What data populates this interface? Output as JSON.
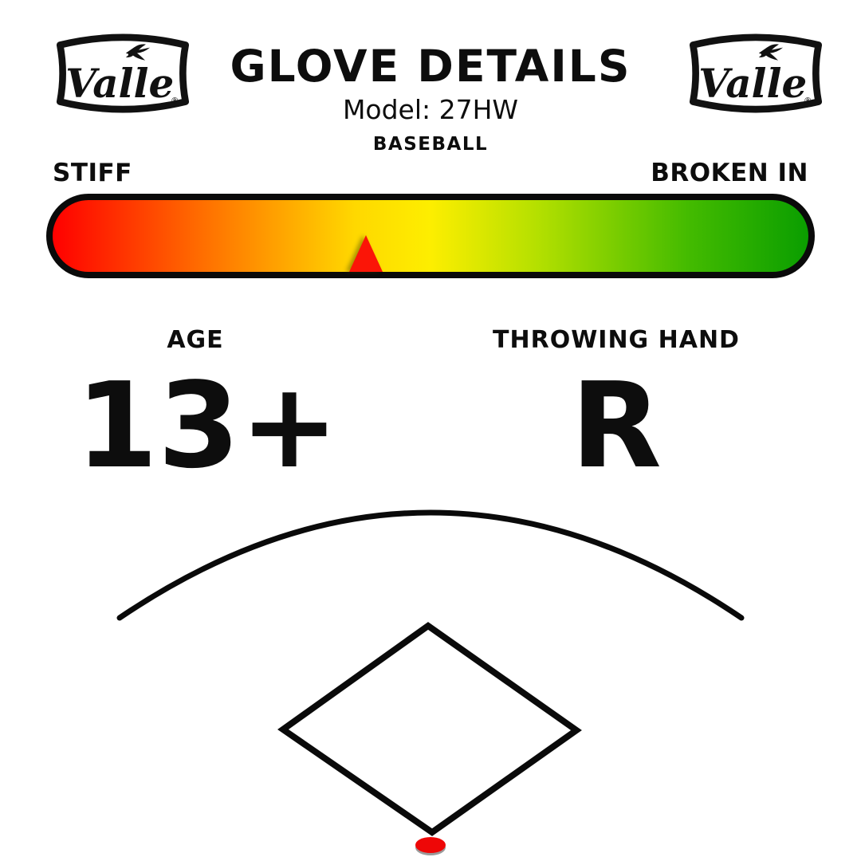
{
  "brand": {
    "name": "Valle",
    "registered_mark": "®"
  },
  "header": {
    "title": "GLOVE DETAILS",
    "model_label": "Model: 27HW",
    "sport": "BASEBALL"
  },
  "scale": {
    "left_label": "STIFF",
    "right_label": "BROKEN IN",
    "pointer_position_pct": 41.5,
    "pointer_color": "#fb1507",
    "gradient_stops": [
      {
        "color": "#ff0000",
        "pos": 0
      },
      {
        "color": "#ff6f00",
        "pos": 20
      },
      {
        "color": "#ffd800",
        "pos": 40
      },
      {
        "color": "#fdee00",
        "pos": 50
      },
      {
        "color": "#b5e000",
        "pos": 64
      },
      {
        "color": "#44bb00",
        "pos": 84
      },
      {
        "color": "#0a9e00",
        "pos": 100
      }
    ]
  },
  "specs": [
    {
      "label": "AGE",
      "value": "13+"
    },
    {
      "label": "THROWING HAND",
      "value": "R"
    }
  ],
  "field_diagram": {
    "home_plate_marker_color": "#ee0707",
    "line_color": "#0a0a0a"
  }
}
